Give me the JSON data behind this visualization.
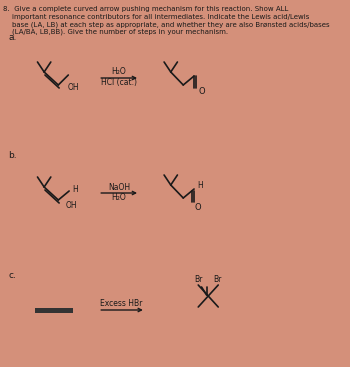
{
  "bg_color": "#d4907a",
  "text_color": "#1a1a1a",
  "title_line1": "8.  Give a complete curved arrow pushing mechanism for this reaction. Show ALL",
  "title_line2": "    important resonance contributors for all intermediates. Indicate the Lewis acid/Lewis",
  "title_line3": "    base (LA, LB) at each step as appropriate, and whether they are also Brønsted acids/bases",
  "title_line4": "    (LA/BA, LB,BB). Give the number of steps in your mechanism.",
  "label_a": "a.",
  "label_b": "b.",
  "label_c": "c.",
  "rxn_a_reagent1": "H₂O",
  "rxn_a_reagent2": "HCl (cat.)",
  "rxn_b_reagent1": "NaOH",
  "rxn_b_reagent2": "H₂O",
  "rxn_c_reagent": "Excess HBr"
}
